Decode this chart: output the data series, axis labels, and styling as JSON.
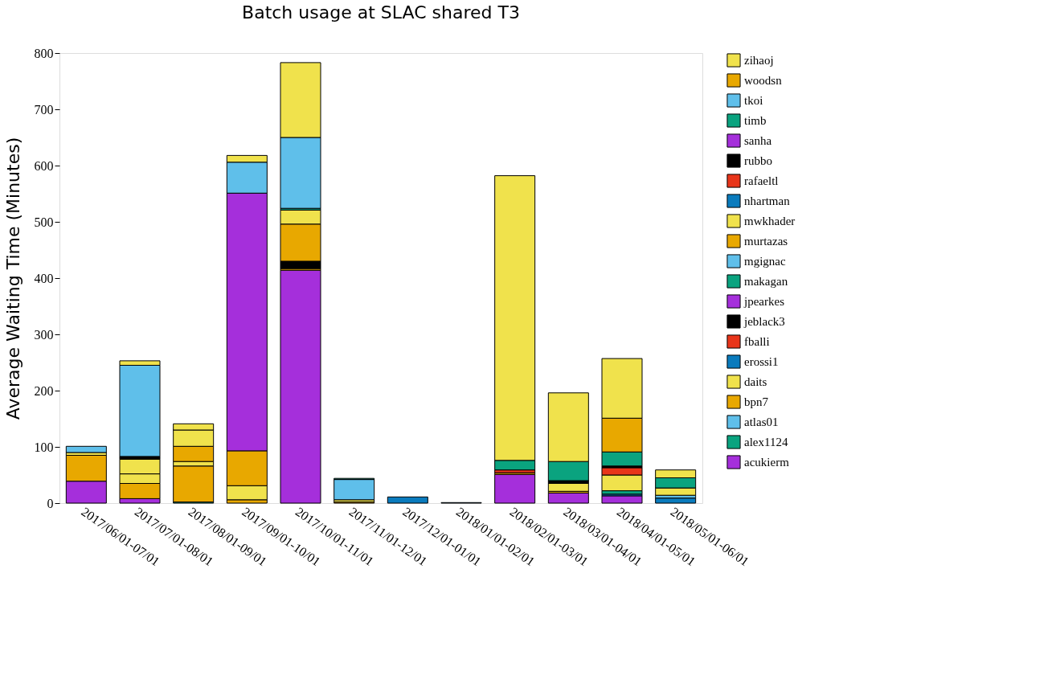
{
  "chart_data": {
    "type": "bar",
    "stacked": true,
    "title": "Batch usage at SLAC shared T3",
    "ylabel": "Average Waiting Time (Minutes)",
    "categories": [
      "2017/06/01-07/01",
      "2017/07/01-08/01",
      "2017/08/01-09/01",
      "2017/09/01-10/01",
      "2017/10/01-11/01",
      "2017/11/01-12/01",
      "2017/12/01-01/01",
      "2018/01/01-02/01",
      "2018/02/01-03/01",
      "2018/03/01-04/01",
      "2018/04/01-05/01",
      "2018/05/01-06/01"
    ],
    "ylim": [
      0,
      800
    ],
    "yticks": [
      0,
      100,
      200,
      300,
      400,
      500,
      600,
      700,
      800
    ],
    "grid": false,
    "legend": "right",
    "series": [
      {
        "name": "acukierm",
        "color": "#a52fdb",
        "values": [
          39,
          8,
          null,
          null,
          414,
          null,
          null,
          null,
          51,
          18,
          13,
          null
        ]
      },
      {
        "name": "alex1124",
        "color": "#0aa37f",
        "values": [
          null,
          null,
          2,
          null,
          null,
          null,
          null,
          null,
          null,
          null,
          null,
          null
        ]
      },
      {
        "name": "atlas01",
        "color": "#5fbfea",
        "values": [
          null,
          null,
          null,
          null,
          null,
          null,
          null,
          null,
          null,
          null,
          null,
          null
        ]
      },
      {
        "name": "bpn7",
        "color": "#e8a800",
        "values": [
          46,
          27,
          64,
          6,
          3,
          2,
          null,
          null,
          3,
          3,
          null,
          null
        ]
      },
      {
        "name": "daits",
        "color": "#f0e24c",
        "values": [
          5,
          17,
          8,
          25,
          null,
          4,
          null,
          null,
          null,
          14,
          null,
          null
        ]
      },
      {
        "name": "erossi1",
        "color": "#0a7bbd",
        "values": [
          null,
          null,
          null,
          null,
          null,
          null,
          11,
          1,
          null,
          null,
          3,
          9
        ]
      },
      {
        "name": "fballi",
        "color": "#e8351a",
        "values": [
          null,
          null,
          null,
          null,
          null,
          null,
          null,
          null,
          5,
          null,
          null,
          null
        ]
      },
      {
        "name": "jeblack3",
        "color": "#000000",
        "values": [
          null,
          null,
          null,
          null,
          13,
          null,
          null,
          null,
          null,
          5,
          null,
          null
        ]
      },
      {
        "name": "jpearkes",
        "color": "#a52fdb",
        "values": [
          null,
          null,
          null,
          null,
          null,
          null,
          null,
          null,
          null,
          null,
          null,
          null
        ]
      },
      {
        "name": "makagan",
        "color": "#0aa37f",
        "values": [
          null,
          null,
          null,
          null,
          null,
          null,
          null,
          null,
          17,
          34,
          6,
          null
        ]
      },
      {
        "name": "mgignac",
        "color": "#5fbfea",
        "values": [
          11,
          null,
          null,
          null,
          null,
          36,
          null,
          null,
          null,
          null,
          null,
          5
        ]
      },
      {
        "name": "murtazas",
        "color": "#e8a800",
        "values": [
          null,
          null,
          27,
          62,
          66,
          null,
          null,
          null,
          null,
          null,
          null,
          null
        ]
      },
      {
        "name": "mwkhader",
        "color": "#f0e24c",
        "values": [
          null,
          26,
          29,
          null,
          25,
          null,
          null,
          null,
          506,
          122,
          28,
          13
        ]
      },
      {
        "name": "nhartman",
        "color": "#0a7bbd",
        "values": [
          null,
          null,
          null,
          null,
          null,
          null,
          null,
          null,
          null,
          null,
          null,
          null
        ]
      },
      {
        "name": "rafaeltl",
        "color": "#e8351a",
        "values": [
          null,
          null,
          null,
          null,
          null,
          null,
          null,
          null,
          null,
          null,
          13,
          null
        ]
      },
      {
        "name": "rubbo",
        "color": "#000000",
        "values": [
          null,
          5,
          null,
          null,
          null,
          null,
          null,
          null,
          null,
          null,
          3,
          null
        ]
      },
      {
        "name": "sanha",
        "color": "#a52fdb",
        "values": [
          null,
          null,
          null,
          458,
          null,
          null,
          null,
          null,
          null,
          null,
          null,
          null
        ]
      },
      {
        "name": "timb",
        "color": "#0aa37f",
        "values": [
          null,
          null,
          null,
          null,
          3,
          2,
          null,
          null,
          null,
          null,
          25,
          18
        ]
      },
      {
        "name": "tkoi",
        "color": "#5fbfea",
        "values": [
          null,
          162,
          null,
          55,
          126,
          null,
          null,
          null,
          null,
          null,
          null,
          null
        ]
      },
      {
        "name": "woodsn",
        "color": "#e8a800",
        "values": [
          null,
          null,
          null,
          null,
          null,
          null,
          null,
          null,
          null,
          null,
          60,
          null
        ]
      },
      {
        "name": "zihaoj",
        "color": "#f0e24c",
        "values": [
          null,
          8,
          11,
          12,
          133,
          null,
          null,
          null,
          null,
          null,
          106,
          14
        ]
      }
    ]
  }
}
